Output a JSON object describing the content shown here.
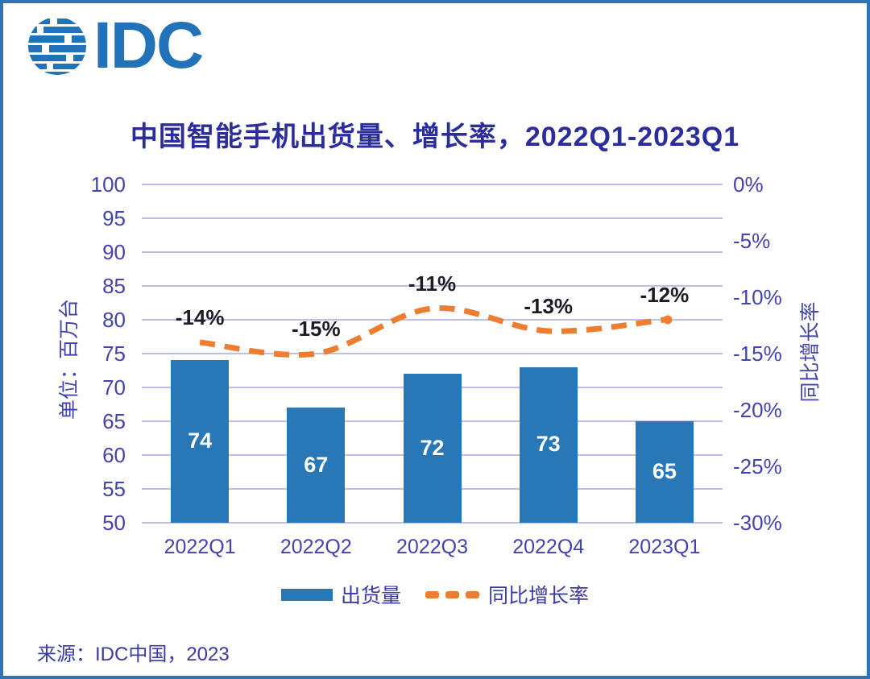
{
  "logo": {
    "text": "IDC",
    "color": "#2272B9"
  },
  "chart_data": {
    "type": "bar+line",
    "title": "中国智能手机出货量、增长率，2022Q1-2023Q1",
    "categories": [
      "2022Q1",
      "2022Q2",
      "2022Q3",
      "2022Q4",
      "2023Q1"
    ],
    "series": [
      {
        "name": "出货量",
        "chart_type": "bar",
        "axis": "left",
        "values": [
          74,
          67,
          72,
          73,
          65
        ],
        "data_labels": [
          "74",
          "67",
          "72",
          "73",
          "65"
        ],
        "color": "#2878B8"
      },
      {
        "name": "同比增长率",
        "chart_type": "line",
        "axis": "right",
        "style": "dashed",
        "smoothed": true,
        "values": [
          -14,
          -15,
          -11,
          -13,
          -12
        ],
        "data_labels": [
          "-14%",
          "-15%",
          "-11%",
          "-13%",
          "-12%"
        ],
        "color": "#ED7D31"
      }
    ],
    "left_axis": {
      "title": "单位：百万台",
      "min": 50,
      "max": 100,
      "step": 5,
      "tick_labels": [
        "100",
        "95",
        "90",
        "85",
        "80",
        "75",
        "70",
        "65",
        "60",
        "55",
        "50"
      ]
    },
    "right_axis": {
      "title": "同比增长率",
      "min": -30,
      "max": 0,
      "step": 5,
      "tick_labels": [
        "0%",
        "-5%",
        "-10%",
        "-15%",
        "-20%",
        "-25%",
        "-30%"
      ]
    },
    "grid": true,
    "legend_position": "bottom",
    "colors": {
      "grid": "#BDBFE6",
      "tick_text": "#4343AC",
      "title_text": "#2B2D9B",
      "bar_value_text": "#FFFFFF",
      "growth_label_text": "#1B1C26",
      "frame_border": "#2E74B5"
    }
  },
  "legend": {
    "items": [
      {
        "label": "出货量",
        "swatch": "bar",
        "color": "#2878B8"
      },
      {
        "label": "同比增长率",
        "swatch": "dashes",
        "color": "#ED7D31"
      }
    ]
  },
  "source": "来源：IDC中国，2023"
}
